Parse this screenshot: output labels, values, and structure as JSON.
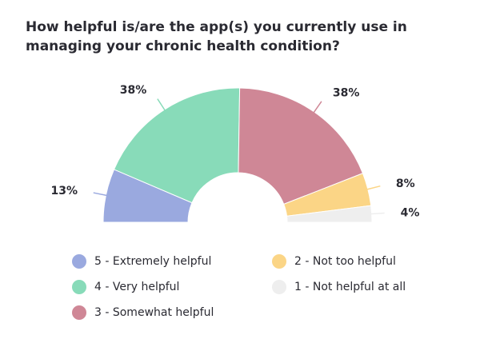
{
  "chart_data": {
    "type": "pie",
    "subtype": "semi-donut",
    "title": "How helpful is/are the app(s) you currently use in managing your  chronic health condition?",
    "categories": [
      "5 - Extremely helpful",
      "4 - Very helpful",
      "3 - Somewhat helpful",
      "2 - Not too helpful",
      "1 - Not helpful at all"
    ],
    "values": [
      13,
      38,
      38,
      8,
      4
    ],
    "value_labels": [
      "13%",
      "38%",
      "38%",
      "8%",
      "4%"
    ],
    "unit": "%",
    "colors": [
      "#9aa9df",
      "#88dbb9",
      "#cf8796",
      "#fbd586",
      "#eeeeee"
    ],
    "legend_position": "bottom"
  }
}
